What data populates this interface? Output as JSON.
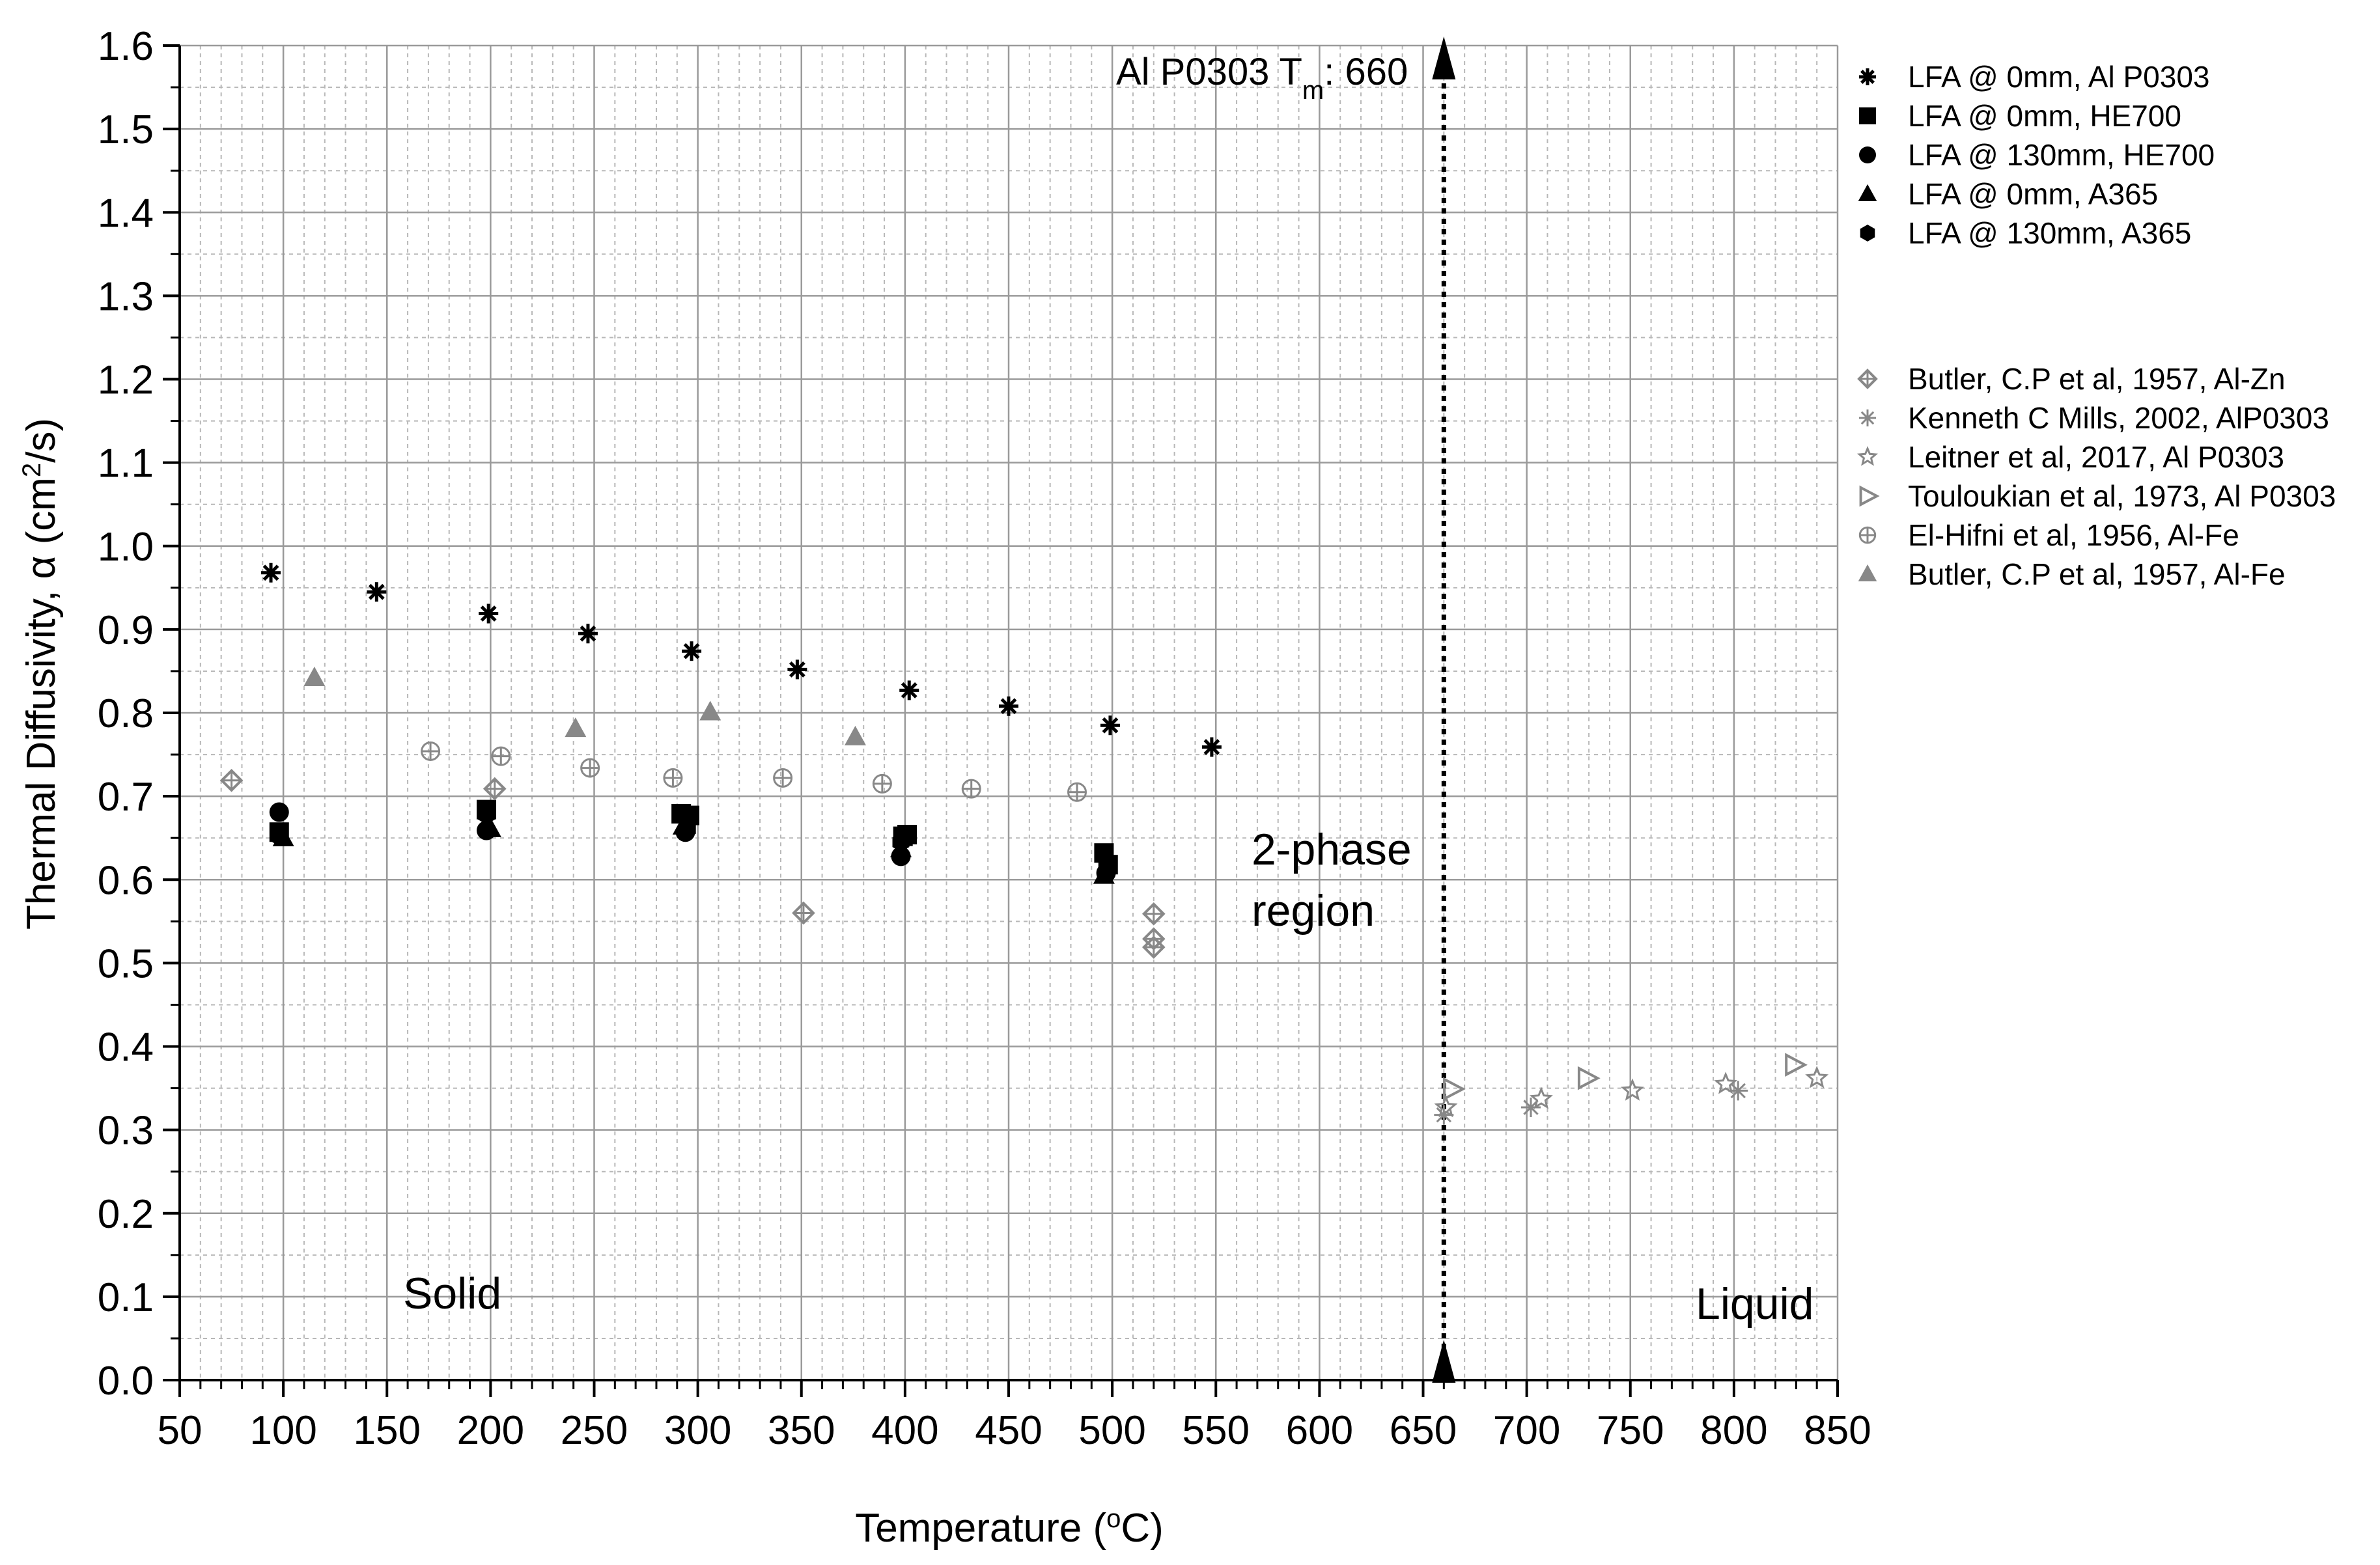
{
  "chart_data": {
    "type": "scatter",
    "title": "",
    "xlabel": "Temperature (°C)",
    "ylabel": "Thermal Diffusivity, α (cm²/s)",
    "xlim": [
      50,
      850
    ],
    "ylim": [
      0.0,
      1.6
    ],
    "x_ticks": [
      "50",
      "100",
      "150",
      "200",
      "250",
      "300",
      "350",
      "400",
      "450",
      "500",
      "550",
      "600",
      "650",
      "700",
      "750",
      "800",
      "850"
    ],
    "y_ticks": [
      "0.0",
      "0.1",
      "0.2",
      "0.3",
      "0.4",
      "0.5",
      "0.6",
      "0.7",
      "0.8",
      "0.9",
      "1.0",
      "1.1",
      "1.2",
      "1.3",
      "1.4",
      "1.5",
      "1.6"
    ],
    "grid": true,
    "legend_position": "right",
    "melting_line": {
      "x": 660,
      "label_main": "Al P0303 T",
      "label_sub": "m",
      "label_value": ": 660"
    },
    "annotations": {
      "solid": "Solid",
      "two_phase_line1": "2-phase",
      "two_phase_line2": "region",
      "liquid": "Liquid"
    },
    "series": [
      {
        "name": "LFA @ 0mm, Al P0303",
        "marker": "asterisk",
        "color": "#000000",
        "points": [
          [
            94,
            0.968
          ],
          [
            145,
            0.945
          ],
          [
            199,
            0.919
          ],
          [
            247,
            0.895
          ],
          [
            297,
            0.874
          ],
          [
            348,
            0.852
          ],
          [
            402,
            0.827
          ],
          [
            450,
            0.808
          ],
          [
            499,
            0.785
          ],
          [
            548,
            0.759
          ]
        ]
      },
      {
        "name": "LFA @ 0mm, HE700",
        "marker": "square",
        "color": "#000000",
        "points": [
          [
            98,
            0.657
          ],
          [
            198,
            0.684
          ],
          [
            292,
            0.679
          ],
          [
            296,
            0.677
          ],
          [
            399,
            0.652
          ],
          [
            401,
            0.654
          ],
          [
            496,
            0.632
          ],
          [
            498,
            0.618
          ]
        ]
      },
      {
        "name": "LFA @ 130mm, HE700",
        "marker": "circle",
        "color": "#000000",
        "points": [
          [
            98,
            0.681
          ],
          [
            198,
            0.659
          ],
          [
            294,
            0.657
          ],
          [
            398,
            0.628
          ],
          [
            497,
            0.608
          ]
        ]
      },
      {
        "name": "LFA @ 0mm, A365",
        "marker": "triangle",
        "color": "#000000",
        "points": [
          [
            100,
            0.65
          ],
          [
            200,
            0.661
          ],
          [
            293,
            0.664
          ],
          [
            398,
            0.637
          ],
          [
            496,
            0.605
          ]
        ]
      },
      {
        "name": "LFA @ 130mm, A365",
        "marker": "hexagon",
        "color": "#000000",
        "points": [
          [
            98,
            0.652
          ],
          [
            198,
            0.678
          ],
          [
            295,
            0.661
          ],
          [
            398,
            0.645
          ],
          [
            498,
            0.615
          ]
        ]
      },
      {
        "name": "Butler, C.P et al, 1957, Al-Zn",
        "marker": "diamond-cross",
        "color": "#888888",
        "points": [
          [
            75,
            0.719
          ],
          [
            202,
            0.709
          ],
          [
            351,
            0.56
          ],
          [
            520,
            0.559
          ],
          [
            520,
            0.529
          ],
          [
            520,
            0.519
          ]
        ]
      },
      {
        "name": "Kenneth C Mills, 2002, AlP0303",
        "marker": "asterisk-light",
        "color": "#888888",
        "points": [
          [
            660,
            0.318
          ],
          [
            702,
            0.327
          ],
          [
            802,
            0.347
          ]
        ]
      },
      {
        "name": "Leitner et al, 2017, Al P0303",
        "marker": "star",
        "color": "#888888",
        "points": [
          [
            661,
            0.327
          ],
          [
            707,
            0.337
          ],
          [
            751,
            0.347
          ],
          [
            796,
            0.355
          ],
          [
            840,
            0.362
          ]
        ]
      },
      {
        "name": "Touloukian et al, 1973, Al P0303",
        "marker": "triangle-right-open",
        "color": "#888888",
        "points": [
          [
            664,
            0.349
          ],
          [
            729,
            0.362
          ],
          [
            829,
            0.378
          ]
        ]
      },
      {
        "name": "El-Hifni et al, 1956, Al-Fe",
        "marker": "circle-plus",
        "color": "#888888",
        "points": [
          [
            171,
            0.754
          ],
          [
            205,
            0.748
          ],
          [
            248,
            0.734
          ],
          [
            288,
            0.722
          ],
          [
            341,
            0.722
          ],
          [
            389,
            0.715
          ],
          [
            432,
            0.709
          ],
          [
            483,
            0.705
          ]
        ]
      },
      {
        "name": "Butler, C.P et al, 1957, Al-Fe",
        "marker": "triangle",
        "color": "#888888",
        "points": [
          [
            115,
            0.842
          ],
          [
            241,
            0.781
          ],
          [
            306,
            0.801
          ],
          [
            376,
            0.771
          ]
        ]
      }
    ]
  }
}
